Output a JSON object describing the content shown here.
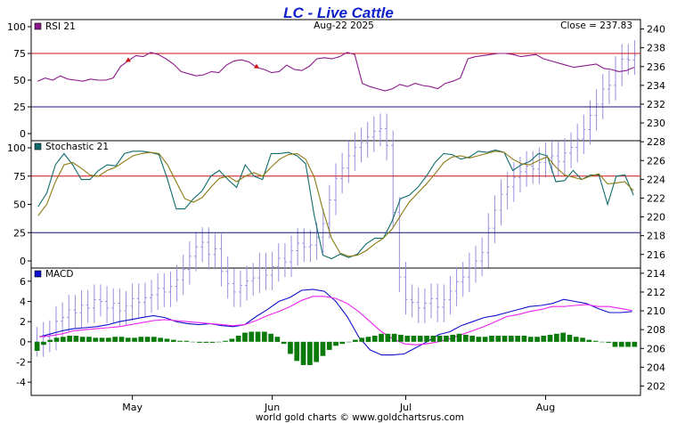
{
  "header": {
    "title": "LC  -  Live Cattle",
    "date": "Aug-22  2025",
    "close": "Close = 237.83",
    "footer": "world gold charts © www.goldchartsrus.com"
  },
  "colors": {
    "title": "#1122cc",
    "price_bars": "#9a8ee0",
    "rsi_line": "#8b1a8b",
    "stoch_k": "#0f6b6b",
    "stoch_d": "#8b7a10",
    "macd_line": "#1010cc",
    "macd_signal": "#ee22ee",
    "macd_hist": "#0a7a0a",
    "ref_red": "#cc1111",
    "ref_navy": "#10107a"
  },
  "chart_data": [
    {
      "type": "ohlc",
      "name": "price",
      "x_labels": [
        "May",
        "Jun",
        "Jul",
        "Aug"
      ],
      "yaxis_right": [
        202,
        204,
        206,
        208,
        210,
        212,
        214,
        216,
        218,
        220,
        222,
        224,
        226,
        228,
        230,
        232,
        234,
        236,
        238,
        240
      ],
      "ylim": [
        201,
        241
      ],
      "close_last": 237.83,
      "days": 95,
      "month_starts": [
        15,
        37,
        58,
        80
      ],
      "values": [
        206.7,
        207.2,
        207.4,
        208.9,
        209.3,
        210.1,
        209.8,
        210.6,
        210.3,
        211.2,
        211.0,
        210.3,
        210.8,
        210.0,
        210.5,
        211.3,
        210.9,
        211.4,
        211.7,
        212.4,
        212.0,
        212.6,
        213.3,
        214.4,
        215.8,
        216.8,
        217.3,
        216.0,
        216.6,
        214.2,
        212.9,
        212.0,
        212.7,
        213.2,
        213.5,
        214.6,
        213.8,
        214.7,
        215.6,
        215.2,
        216.4,
        217.2,
        216.8,
        217.0,
        217.8,
        219.3,
        221.8,
        224.1,
        225.2,
        226.5,
        227.4,
        227.9,
        228.5,
        229.1,
        229.4,
        227.6,
        220.5,
        213.6,
        211.2,
        210.9,
        210.3,
        210.8,
        211.3,
        210.4,
        211.2,
        212.1,
        213.1,
        213.6,
        214.6,
        215.3,
        216.2,
        218.8,
        220.7,
        222.4,
        223.2,
        224.2,
        224.8,
        225.4,
        225.1,
        225.8,
        226.3,
        226.5,
        225.9,
        226.8,
        227.4,
        228.3,
        229.3,
        230.8,
        232.0,
        233.6,
        234.0,
        235.5,
        236.8,
        236.7,
        237.2
      ]
    },
    {
      "type": "line",
      "name": "RSI 21",
      "yticks": [
        0,
        25,
        50,
        75,
        100
      ],
      "ylim": [
        0,
        100
      ],
      "reference_lines": {
        "red": 75,
        "navy": 25
      },
      "red_markers": [
        12,
        29
      ],
      "values": [
        49,
        52,
        50,
        54,
        51,
        50,
        49,
        51,
        50,
        50,
        52,
        63,
        68,
        73,
        72,
        76,
        74,
        70,
        65,
        58,
        56,
        54,
        55,
        58,
        57,
        64,
        68,
        69,
        67,
        62,
        60,
        57,
        58,
        64,
        60,
        59,
        63,
        70,
        71,
        70,
        72,
        76,
        74,
        47,
        44,
        42,
        40,
        42,
        46,
        44,
        47,
        45,
        44,
        42,
        47,
        49,
        52,
        70,
        72,
        73,
        74,
        75,
        75,
        74,
        72,
        73,
        74,
        70,
        68,
        66,
        64,
        62,
        63,
        64,
        65,
        61,
        60,
        58,
        59,
        62
      ]
    },
    {
      "type": "line",
      "name": "Stochastic 21",
      "yticks": [
        0,
        25,
        50,
        75,
        100
      ],
      "ylim": [
        0,
        100
      ],
      "reference_lines": {
        "red": 75,
        "navy": 25
      },
      "series": [
        {
          "name": "%K",
          "values": [
            48,
            60,
            85,
            95,
            85,
            72,
            72,
            80,
            85,
            84,
            95,
            97,
            97,
            96,
            94,
            72,
            46,
            46,
            55,
            62,
            75,
            80,
            72,
            65,
            85,
            75,
            72,
            95,
            95,
            96,
            93,
            86,
            40,
            5,
            2,
            6,
            3,
            6,
            15,
            20,
            20,
            35,
            55,
            58,
            65,
            75,
            87,
            95,
            94,
            90,
            92,
            97,
            96,
            98,
            96,
            80,
            85,
            88,
            95,
            93,
            70,
            71,
            80,
            72,
            76,
            76,
            50,
            75,
            76,
            58
          ]
        },
        {
          "name": "%D",
          "values": [
            40,
            50,
            70,
            85,
            87,
            82,
            76,
            75,
            80,
            83,
            88,
            93,
            95,
            96,
            95,
            85,
            70,
            55,
            52,
            56,
            65,
            73,
            75,
            70,
            75,
            78,
            75,
            83,
            90,
            94,
            95,
            90,
            74,
            45,
            20,
            7,
            4,
            5,
            9,
            15,
            20,
            28,
            40,
            52,
            60,
            68,
            77,
            87,
            92,
            93,
            91,
            93,
            95,
            97,
            96,
            90,
            86,
            85,
            89,
            92,
            83,
            76,
            74,
            72,
            75,
            77,
            68,
            69,
            70,
            62
          ]
        }
      ]
    },
    {
      "type": "line",
      "name": "MACD",
      "yticks": [
        -4,
        -2,
        0,
        2,
        4,
        6
      ],
      "ylim": [
        -4.6,
        6.6
      ],
      "series": [
        {
          "name": "MACD",
          "values": [
            0.5,
            0.8,
            1.1,
            1.3,
            1.4,
            1.5,
            1.7,
            2.0,
            2.2,
            2.4,
            2.6,
            2.4,
            2.0,
            1.8,
            1.7,
            1.8,
            1.6,
            1.5,
            1.7,
            2.5,
            3.2,
            4.0,
            4.4,
            5.1,
            5.2,
            5.0,
            4.0,
            2.5,
            0.5,
            -0.8,
            -1.3,
            -1.3,
            -1.2,
            -0.6,
            0.0,
            0.7,
            1.0,
            1.6,
            2.0,
            2.4,
            2.6,
            2.9,
            3.2,
            3.5,
            3.6,
            3.8,
            4.2,
            4.0,
            3.8,
            3.3,
            2.9,
            2.9,
            3.0
          ]
        },
        {
          "name": "Signal",
          "values": [
            0.5,
            0.6,
            0.8,
            1.1,
            1.2,
            1.3,
            1.4,
            1.5,
            1.7,
            1.9,
            2.1,
            2.2,
            2.1,
            2.0,
            1.9,
            1.8,
            1.7,
            1.6,
            1.7,
            2.1,
            2.6,
            3.0,
            3.5,
            4.1,
            4.5,
            4.5,
            4.3,
            3.8,
            3.0,
            2.0,
            1.0,
            0.3,
            -0.2,
            -0.3,
            -0.2,
            0.0,
            0.3,
            0.7,
            1.1,
            1.5,
            2.0,
            2.5,
            2.7,
            3.0,
            3.2,
            3.5,
            3.5,
            3.6,
            3.7,
            3.5,
            3.5,
            3.3,
            3.1
          ]
        },
        {
          "name": "Histogram",
          "values": [
            -0.9,
            -0.3,
            0.2,
            0.4,
            0.5,
            0.6,
            0.6,
            0.5,
            0.5,
            0.4,
            0.4,
            0.4,
            0.5,
            0.5,
            0.4,
            0.4,
            0.5,
            0.5,
            0.5,
            0.4,
            0.3,
            0.2,
            0.1,
            0.1,
            0.0,
            -0.1,
            -0.1,
            -0.1,
            0.0,
            0.1,
            0.3,
            0.6,
            0.9,
            1.0,
            1.0,
            1.0,
            0.8,
            0.5,
            -0.2,
            -1.2,
            -1.9,
            -2.3,
            -2.3,
            -2.0,
            -1.4,
            -0.8,
            -0.4,
            -0.2,
            0.0,
            0.2,
            0.4,
            0.5,
            0.6,
            0.8,
            0.8,
            0.8,
            0.7,
            0.6,
            0.6,
            0.6,
            0.6,
            0.6,
            0.6,
            0.6,
            0.7,
            0.8,
            0.7,
            0.6,
            0.5,
            0.5,
            0.6,
            0.6,
            0.6,
            0.6,
            0.6,
            0.6,
            0.5,
            0.5,
            0.6,
            0.7,
            0.8,
            0.9,
            0.7,
            0.5,
            0.4,
            0.2,
            0.1,
            0.0,
            -0.1,
            -0.5,
            -0.5,
            -0.5,
            -0.5
          ]
        }
      ]
    }
  ]
}
